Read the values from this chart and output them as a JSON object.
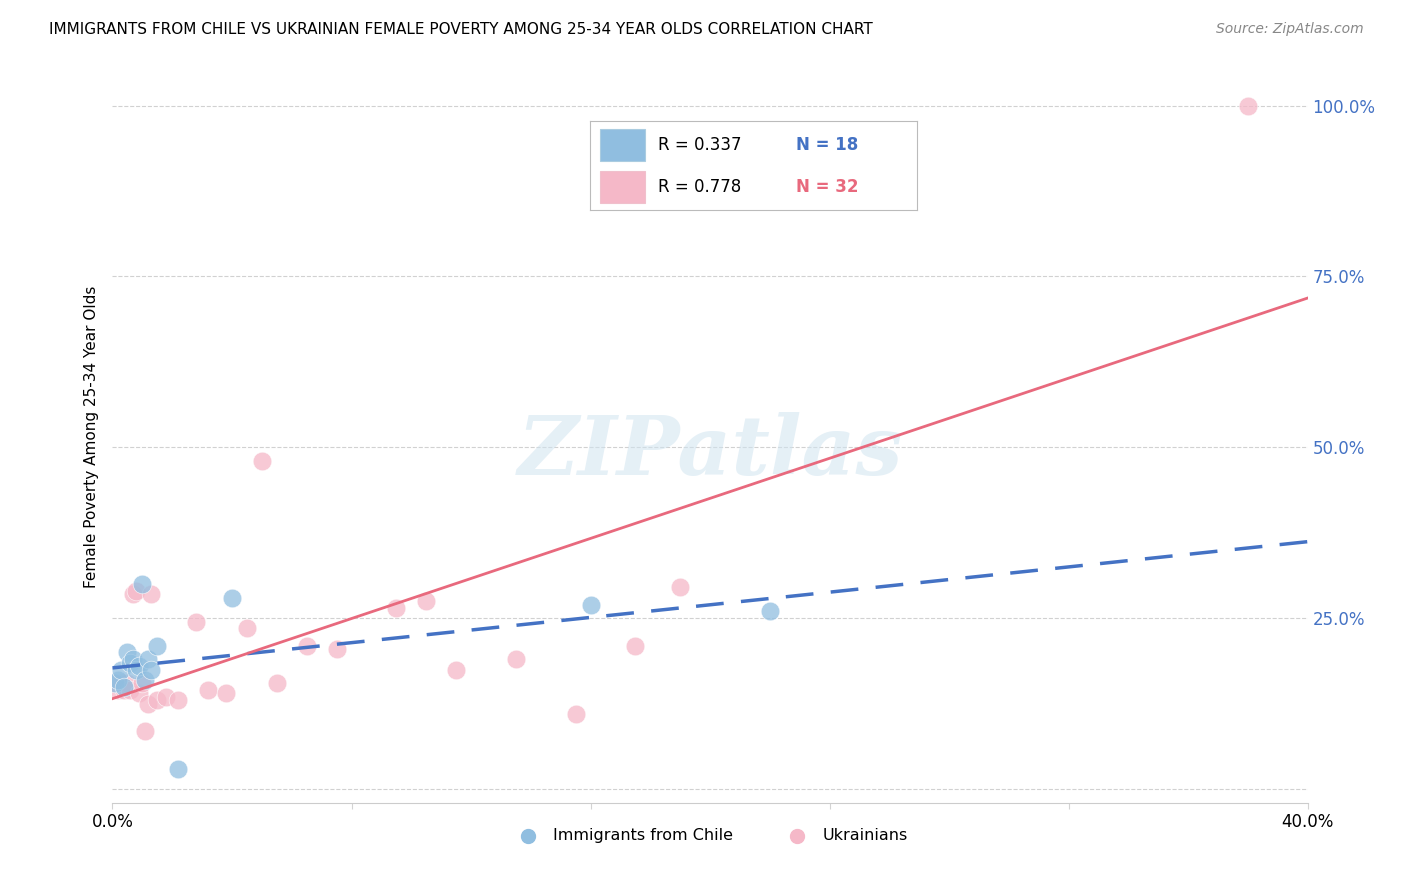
{
  "title": "IMMIGRANTS FROM CHILE VS UKRAINIAN FEMALE POVERTY AMONG 25-34 YEAR OLDS CORRELATION CHART",
  "source": "Source: ZipAtlas.com",
  "ylabel": "Female Poverty Among 25-34 Year Olds",
  "right_ylabel_color": "#4472C4",
  "legend_r1": "R = 0.337",
  "legend_n1": "N = 18",
  "legend_r2": "R = 0.778",
  "legend_n2": "N = 32",
  "legend_label1": "Immigrants from Chile",
  "legend_label2": "Ukrainians",
  "blue_scatter_color": "#90BEE0",
  "pink_scatter_color": "#F5B8C8",
  "blue_line_color": "#4472C4",
  "pink_line_color": "#E8697D",
  "watermark": "ZIPatlas",
  "xlim": [
    0.0,
    0.4
  ],
  "ylim": [
    -0.02,
    1.05
  ],
  "yticks_right": [
    0.0,
    0.25,
    0.5,
    0.75,
    1.0
  ],
  "ytick_right_labels": [
    "",
    "25.0%",
    "50.0%",
    "75.0%",
    "100.0%"
  ],
  "chile_x": [
    0.001,
    0.002,
    0.003,
    0.004,
    0.005,
    0.006,
    0.007,
    0.008,
    0.009,
    0.01,
    0.011,
    0.012,
    0.013,
    0.015,
    0.022,
    0.04,
    0.16,
    0.22
  ],
  "chile_y": [
    0.155,
    0.16,
    0.175,
    0.15,
    0.2,
    0.185,
    0.19,
    0.175,
    0.18,
    0.3,
    0.16,
    0.19,
    0.175,
    0.21,
    0.03,
    0.28,
    0.27,
    0.26
  ],
  "ukraine_x": [
    0.001,
    0.002,
    0.003,
    0.004,
    0.005,
    0.006,
    0.007,
    0.008,
    0.009,
    0.01,
    0.011,
    0.012,
    0.013,
    0.015,
    0.018,
    0.022,
    0.028,
    0.032,
    0.038,
    0.045,
    0.05,
    0.055,
    0.065,
    0.075,
    0.095,
    0.105,
    0.115,
    0.135,
    0.155,
    0.175,
    0.19,
    0.38
  ],
  "ukraine_y": [
    0.155,
    0.145,
    0.155,
    0.145,
    0.155,
    0.145,
    0.285,
    0.29,
    0.14,
    0.155,
    0.085,
    0.125,
    0.285,
    0.13,
    0.135,
    0.13,
    0.245,
    0.145,
    0.14,
    0.235,
    0.48,
    0.155,
    0.21,
    0.205,
    0.265,
    0.275,
    0.175,
    0.19,
    0.11,
    0.21,
    0.295,
    1.0
  ]
}
